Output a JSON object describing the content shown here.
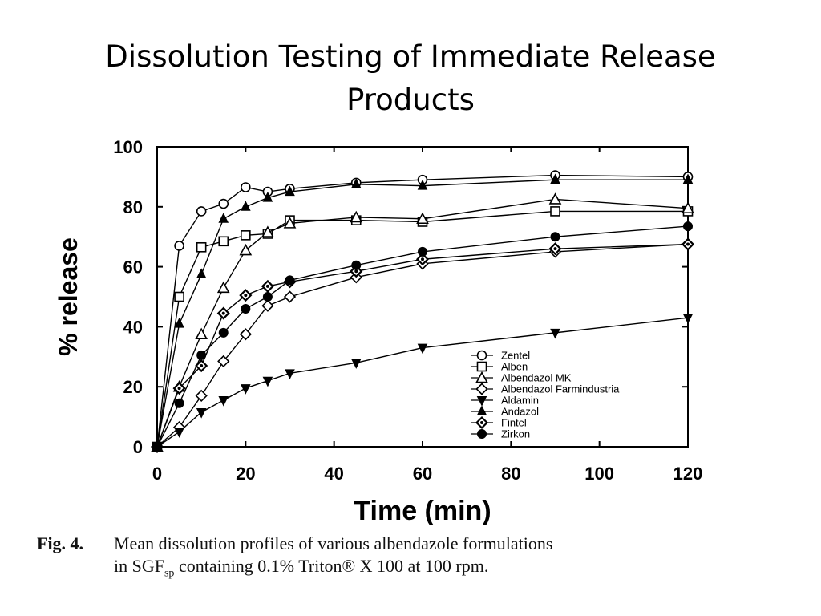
{
  "slide": {
    "title_line1": "Dissolution Testing of Immediate Release",
    "title_line2": "Products"
  },
  "caption": {
    "label": "Fig. 4.",
    "line1": "Mean dissolution profiles of various albendazole formulations",
    "line2_pre": "in SGF",
    "line2_sub": "sp",
    "line2_post": " containing 0.1% Triton® X 100 at 100 rpm."
  },
  "chart_data": {
    "type": "line",
    "title": "",
    "xlabel": "Time (min)",
    "ylabel": "% release",
    "xlim": [
      0,
      120
    ],
    "ylim": [
      0,
      100
    ],
    "xticks": [
      0,
      20,
      40,
      60,
      80,
      100,
      120
    ],
    "yticks": [
      0,
      20,
      40,
      60,
      80,
      100
    ],
    "grid": false,
    "legend_position": "bottom-right",
    "series": [
      {
        "name": "Zentel",
        "marker": "circle-open",
        "x": [
          0,
          5,
          10,
          15,
          20,
          25,
          30,
          45,
          60,
          90,
          120
        ],
        "values": [
          0,
          67,
          78.5,
          81,
          86.5,
          85,
          86,
          88,
          89,
          90.5,
          90
        ]
      },
      {
        "name": "Alben",
        "marker": "square-open",
        "x": [
          0,
          5,
          10,
          15,
          20,
          25,
          30,
          45,
          60,
          90,
          120
        ],
        "values": [
          0,
          50,
          66.5,
          68.5,
          70.5,
          71,
          75.5,
          75.5,
          75,
          78.5,
          78.5
        ]
      },
      {
        "name": "Albendazol MK",
        "marker": "triangle-up-open",
        "x": [
          0,
          5,
          10,
          15,
          20,
          25,
          30,
          45,
          60,
          90,
          120
        ],
        "values": [
          0,
          20,
          37.5,
          53,
          65.5,
          71.5,
          74.5,
          76.5,
          76,
          82.5,
          79.5
        ]
      },
      {
        "name": "Albendazol Farmindustria",
        "marker": "diamond-open",
        "x": [
          0,
          5,
          10,
          15,
          20,
          25,
          30,
          45,
          60,
          90,
          120
        ],
        "values": [
          0,
          6.5,
          17,
          28.5,
          37.5,
          47,
          50,
          56.5,
          61,
          65,
          67.5
        ]
      },
      {
        "name": "Aldamin",
        "marker": "triangle-down-filled",
        "x": [
          0,
          5,
          10,
          15,
          20,
          25,
          30,
          45,
          60,
          90,
          120
        ],
        "values": [
          0,
          5,
          11.5,
          15.5,
          19.5,
          22,
          24.5,
          28,
          33,
          38,
          43
        ]
      },
      {
        "name": "Andazol",
        "marker": "triangle-up-filled",
        "x": [
          0,
          5,
          10,
          15,
          20,
          25,
          30,
          45,
          60,
          90,
          120
        ],
        "values": [
          0,
          41,
          57.5,
          76,
          80,
          83,
          85,
          87.5,
          87,
          89,
          89
        ]
      },
      {
        "name": "Fintel",
        "marker": "diamond-dot",
        "x": [
          0,
          5,
          10,
          15,
          20,
          25,
          30,
          45,
          60,
          90,
          120
        ],
        "values": [
          0,
          19.5,
          27,
          44.5,
          50.5,
          53.5,
          55,
          58.5,
          62.5,
          66,
          67.5
        ]
      },
      {
        "name": "Zirkon",
        "marker": "circle-filled",
        "x": [
          0,
          5,
          10,
          15,
          20,
          25,
          30,
          45,
          60,
          90,
          120
        ],
        "values": [
          0,
          14.5,
          30.5,
          38,
          46,
          50,
          55.5,
          60.5,
          65,
          70,
          73.5
        ]
      }
    ]
  }
}
